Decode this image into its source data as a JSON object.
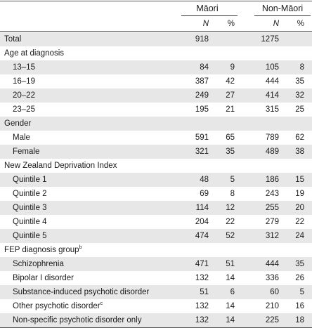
{
  "header": {
    "group1": "Māori",
    "group2": "Non-Māori",
    "col_n": "N",
    "col_pct": "%"
  },
  "rows": [
    {
      "label": "Total",
      "n1": "918",
      "p1": "",
      "n2": "1275",
      "p2": "",
      "indent": false
    },
    {
      "label": "Age at diagnosis",
      "n1": "",
      "p1": "",
      "n2": "",
      "p2": "",
      "indent": false
    },
    {
      "label": "13–15",
      "n1": "84",
      "p1": "9",
      "n2": "105",
      "p2": "8",
      "indent": true
    },
    {
      "label": "16–19",
      "n1": "387",
      "p1": "42",
      "n2": "444",
      "p2": "35",
      "indent": true
    },
    {
      "label": "20–22",
      "n1": "249",
      "p1": "27",
      "n2": "414",
      "p2": "32",
      "indent": true
    },
    {
      "label": "23–25",
      "n1": "195",
      "p1": "21",
      "n2": "315",
      "p2": "25",
      "indent": true
    },
    {
      "label": "Gender",
      "n1": "",
      "p1": "",
      "n2": "",
      "p2": "",
      "indent": false
    },
    {
      "label": "Male",
      "n1": "591",
      "p1": "65",
      "n2": "789",
      "p2": "62",
      "indent": true
    },
    {
      "label": "Female",
      "n1": "321",
      "p1": "35",
      "n2": "489",
      "p2": "38",
      "indent": true
    },
    {
      "label": "New Zealand Deprivation Index",
      "n1": "",
      "p1": "",
      "n2": "",
      "p2": "",
      "indent": false
    },
    {
      "label": "Quintile 1",
      "n1": "48",
      "p1": "5",
      "n2": "186",
      "p2": "15",
      "indent": true
    },
    {
      "label": "Quintile 2",
      "n1": "69",
      "p1": "8",
      "n2": "243",
      "p2": "19",
      "indent": true
    },
    {
      "label": "Quintile 3",
      "n1": "114",
      "p1": "12",
      "n2": "255",
      "p2": "20",
      "indent": true
    },
    {
      "label": "Quintile 4",
      "n1": "204",
      "p1": "22",
      "n2": "279",
      "p2": "22",
      "indent": true
    },
    {
      "label": "Quintile 5",
      "n1": "474",
      "p1": "52",
      "n2": "312",
      "p2": "24",
      "indent": true
    },
    {
      "label": "FEP diagnosis group",
      "sup": "b",
      "n1": "",
      "p1": "",
      "n2": "",
      "p2": "",
      "indent": false
    },
    {
      "label": "Schizophrenia",
      "n1": "471",
      "p1": "51",
      "n2": "444",
      "p2": "35",
      "indent": true
    },
    {
      "label": "Bipolar I disorder",
      "n1": "132",
      "p1": "14",
      "n2": "336",
      "p2": "26",
      "indent": true
    },
    {
      "label": "Substance-induced psychotic disorder",
      "n1": "51",
      "p1": "6",
      "n2": "60",
      "p2": "5",
      "indent": true
    },
    {
      "label": "Other psychotic disorder",
      "sup": "c",
      "n1": "132",
      "p1": "14",
      "n2": "210",
      "p2": "16",
      "indent": true
    },
    {
      "label": "Non-specific psychotic disorder only",
      "n1": "132",
      "p1": "14",
      "n2": "225",
      "p2": "18",
      "indent": true
    }
  ]
}
